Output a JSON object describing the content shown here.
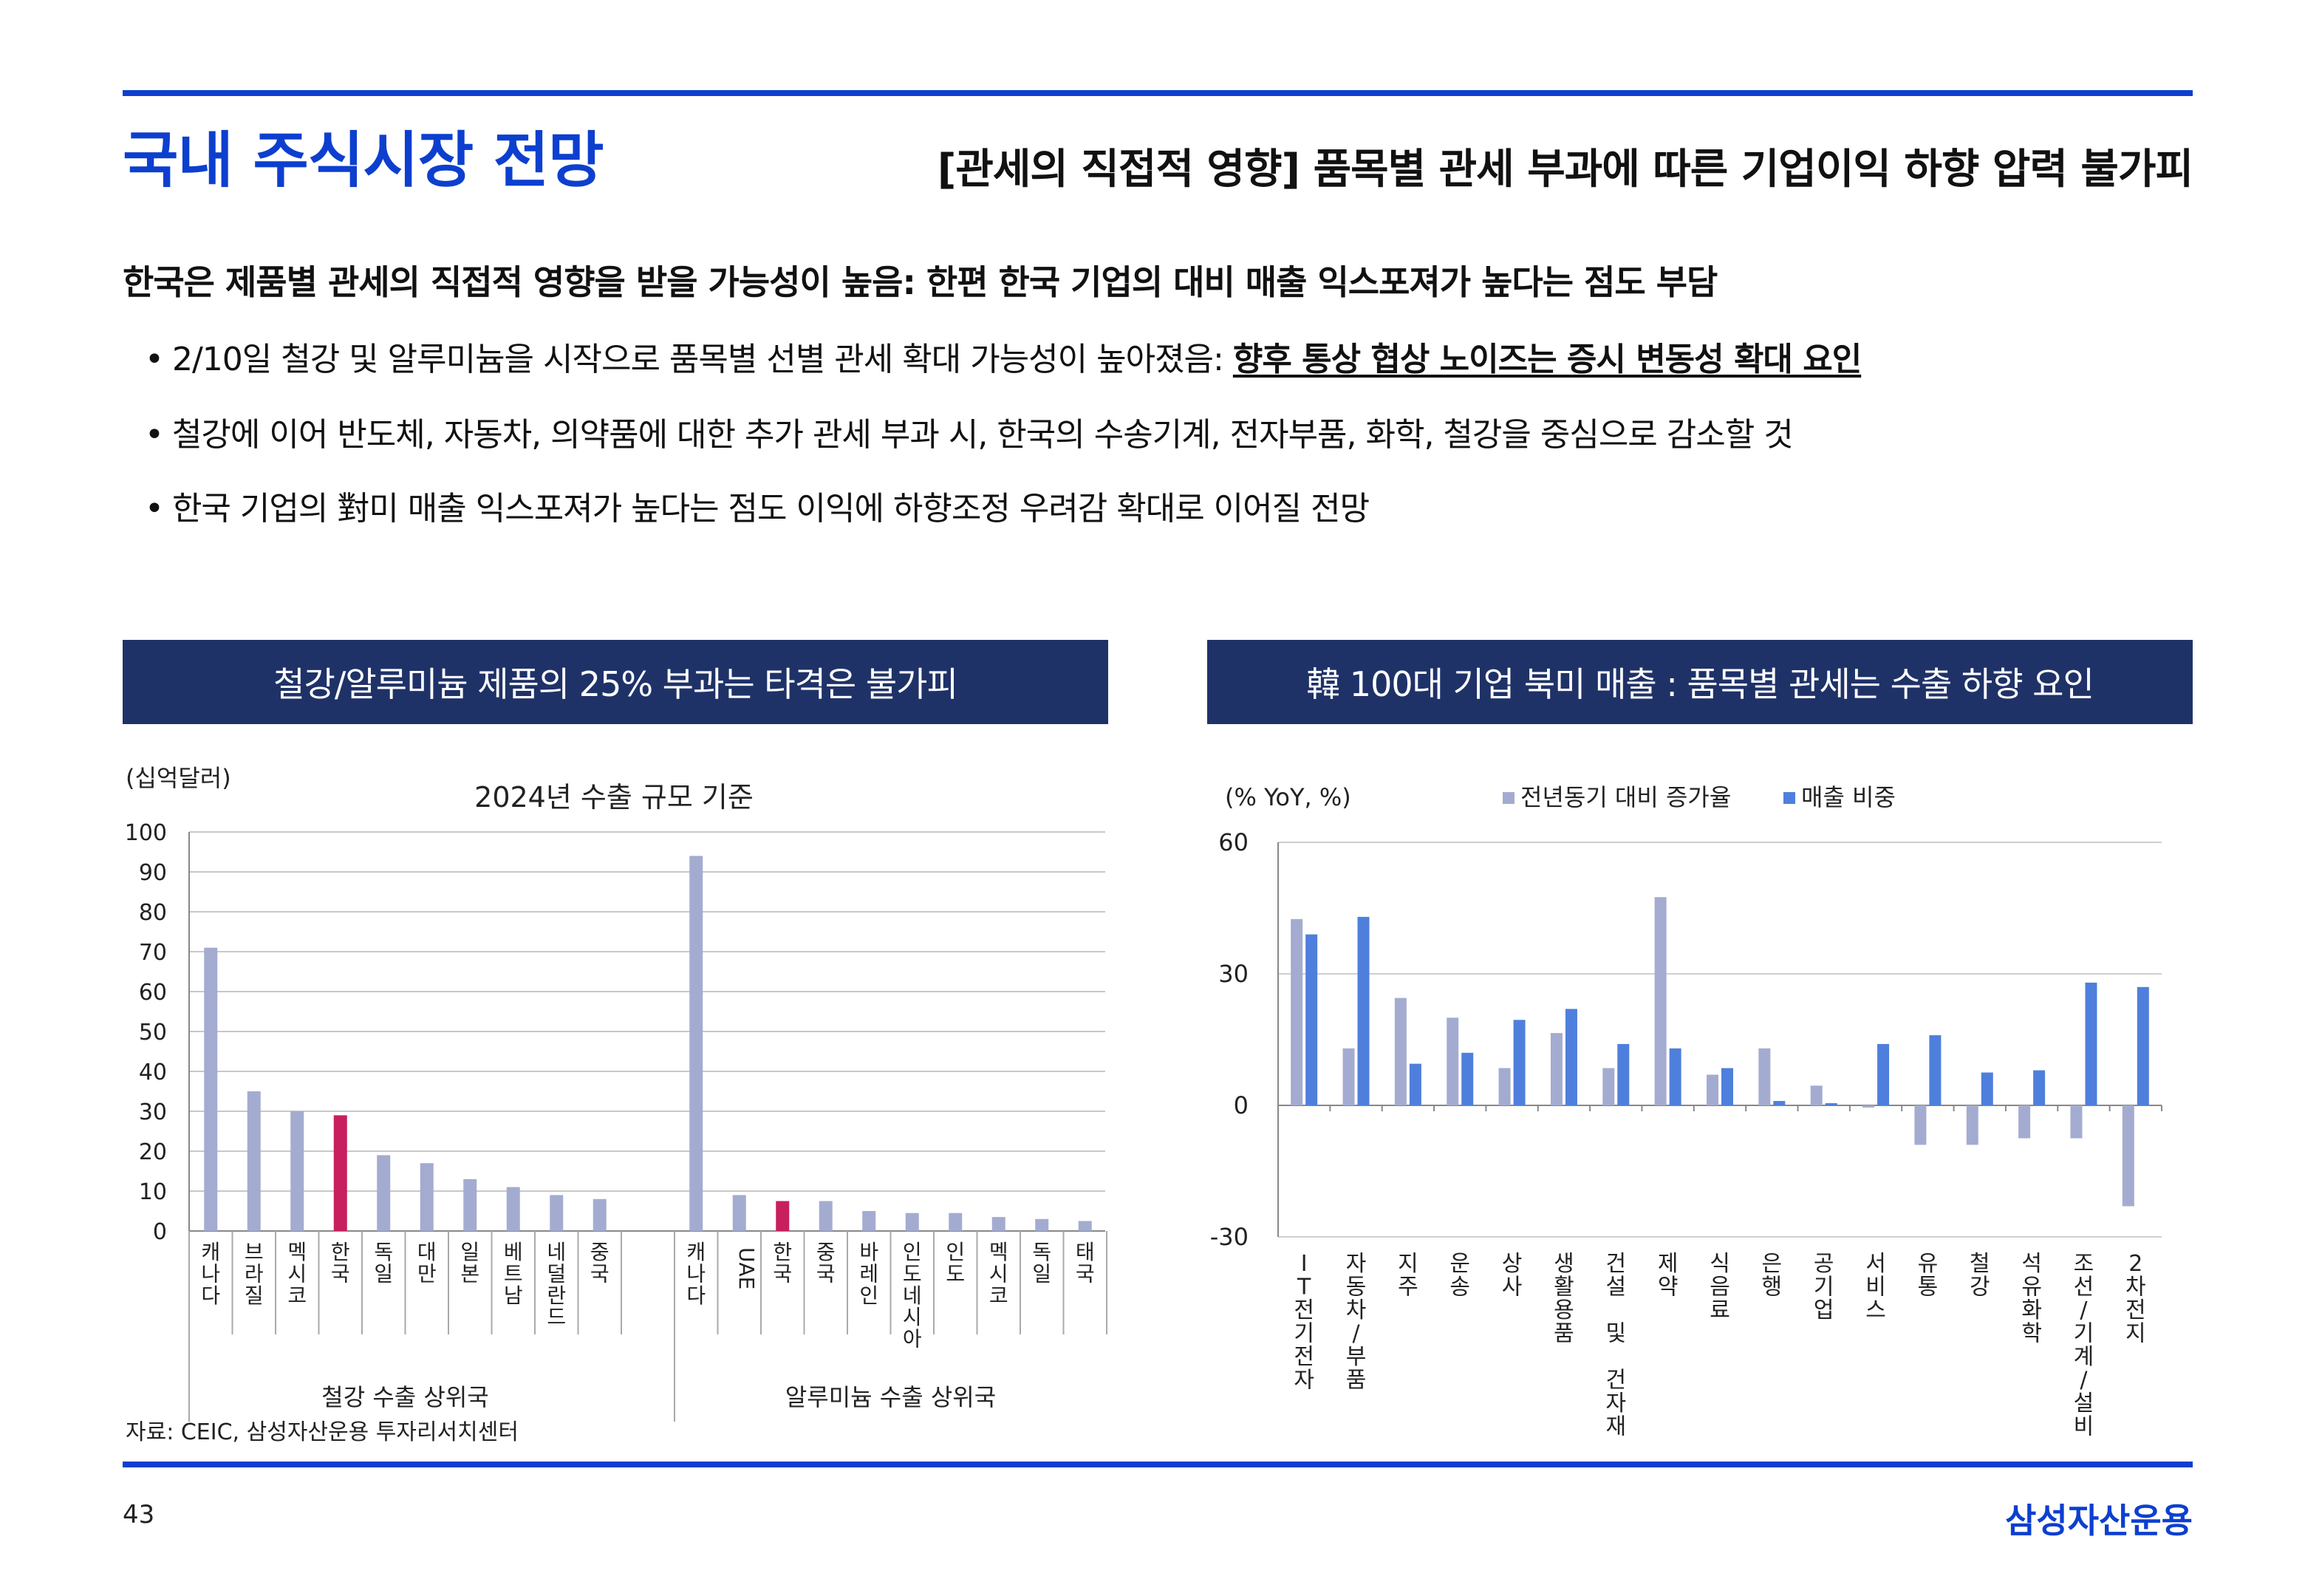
{
  "header": {
    "title": "국내 주식시장 전망",
    "subtitle": "[관세의 직접적 영향] 품목별 관세 부과에 따른 기업이익 하향 압력 불가피"
  },
  "summary": "한국은 제품별 관세의 직접적 영향을 받을 가능성이 높음: 한편  한국 기업의 대비 매출 익스포져가 높다는 점도 부담",
  "bullets": [
    {
      "text": "2/10일 철강 및 알루미늄을 시작으로 품목별 선별 관세 확대 가능성이 높아졌음: ",
      "highlight": "향후 통상 협상 노이즈는 증시 변동성 확대 요인"
    },
    {
      "text": "철강에 이어 반도체, 자동차, 의약품에 대한 추가 관세 부과 시, 한국의 수송기계, 전자부품, 화학, 철강을 중심으로 감소할 것"
    },
    {
      "text": "한국 기업의 對미 매출 익스포져가 높다는 점도 이익에 하향조정 우려감 확대로 이어질 전망"
    }
  ],
  "left_panel": {
    "header": "철강/알루미늄 제품의 25% 부과는 타격은 불가피"
  },
  "right_panel": {
    "header": "韓 100대 기업 북미 매출 : 품목별 관세는 수출 하향 요인"
  },
  "footer": {
    "source": "자료: CEIC, 삼성자산운용 투자리서치센터",
    "page_number": "43",
    "brand": "삼성자산운용"
  },
  "colors": {
    "accent": "#0d3fcf",
    "header_bg": "#1f3268",
    "bar_gray": "#a3acd0",
    "bar_highlight": "#c81f5e",
    "bar_blue": "#4f7fdc"
  },
  "chart_data": [
    {
      "type": "bar",
      "unit_label": "(십억달러)",
      "title": "2024년 수출 규모 기준",
      "ylim": [
        0,
        100
      ],
      "yticks": [
        0,
        10,
        20,
        30,
        40,
        50,
        60,
        70,
        80,
        90,
        100
      ],
      "groups": [
        {
          "name": "철강 수출 상위국",
          "categories": [
            "캐나다",
            "브라질",
            "멕시코",
            "한국",
            "독일",
            "대만",
            "일본",
            "베트남",
            "네덜란드",
            "중국"
          ],
          "values": [
            71,
            35,
            30,
            29,
            19,
            17,
            13,
            11,
            9,
            8
          ],
          "highlight": "한국"
        },
        {
          "name": "알루미늄 수출 상위국",
          "categories": [
            "캐나다",
            "UAE",
            "한국",
            "중국",
            "바레인",
            "인도네시아",
            "인도",
            "멕시코",
            "독일",
            "태국"
          ],
          "values": [
            94,
            9,
            7.5,
            7.5,
            5,
            4.5,
            4.5,
            3.5,
            3,
            2.5
          ],
          "highlight": "한국"
        }
      ],
      "grid": true
    },
    {
      "type": "bar",
      "unit_label": "(% YoY, %)",
      "ylim": [
        -30,
        60
      ],
      "yticks": [
        -30,
        0,
        30,
        60
      ],
      "categories": [
        "IT전기전자",
        "자동차/부품",
        "지주",
        "운송",
        "상사",
        "생활용품",
        "건설 및 건자재",
        "제약",
        "식음료",
        "은행",
        "공기업",
        "서비스",
        "유통",
        "철강",
        "석유화학",
        "조선/기계/설비",
        "2차전지"
      ],
      "series": [
        {
          "name": "전년동기 대비 증가율",
          "values": [
            42.5,
            13,
            24.5,
            20,
            8.5,
            16.5,
            8.5,
            47.5,
            7,
            13,
            4.5,
            -0.5,
            -9,
            -9,
            -7.5,
            -7.5,
            -23
          ]
        },
        {
          "name": "매출 비중",
          "values": [
            39,
            43,
            9.5,
            12,
            19.5,
            22,
            14,
            13,
            8.5,
            1,
            0.5,
            14,
            16,
            7.5,
            8,
            28,
            27
          ]
        }
      ],
      "legend": "top",
      "grid": true
    }
  ]
}
